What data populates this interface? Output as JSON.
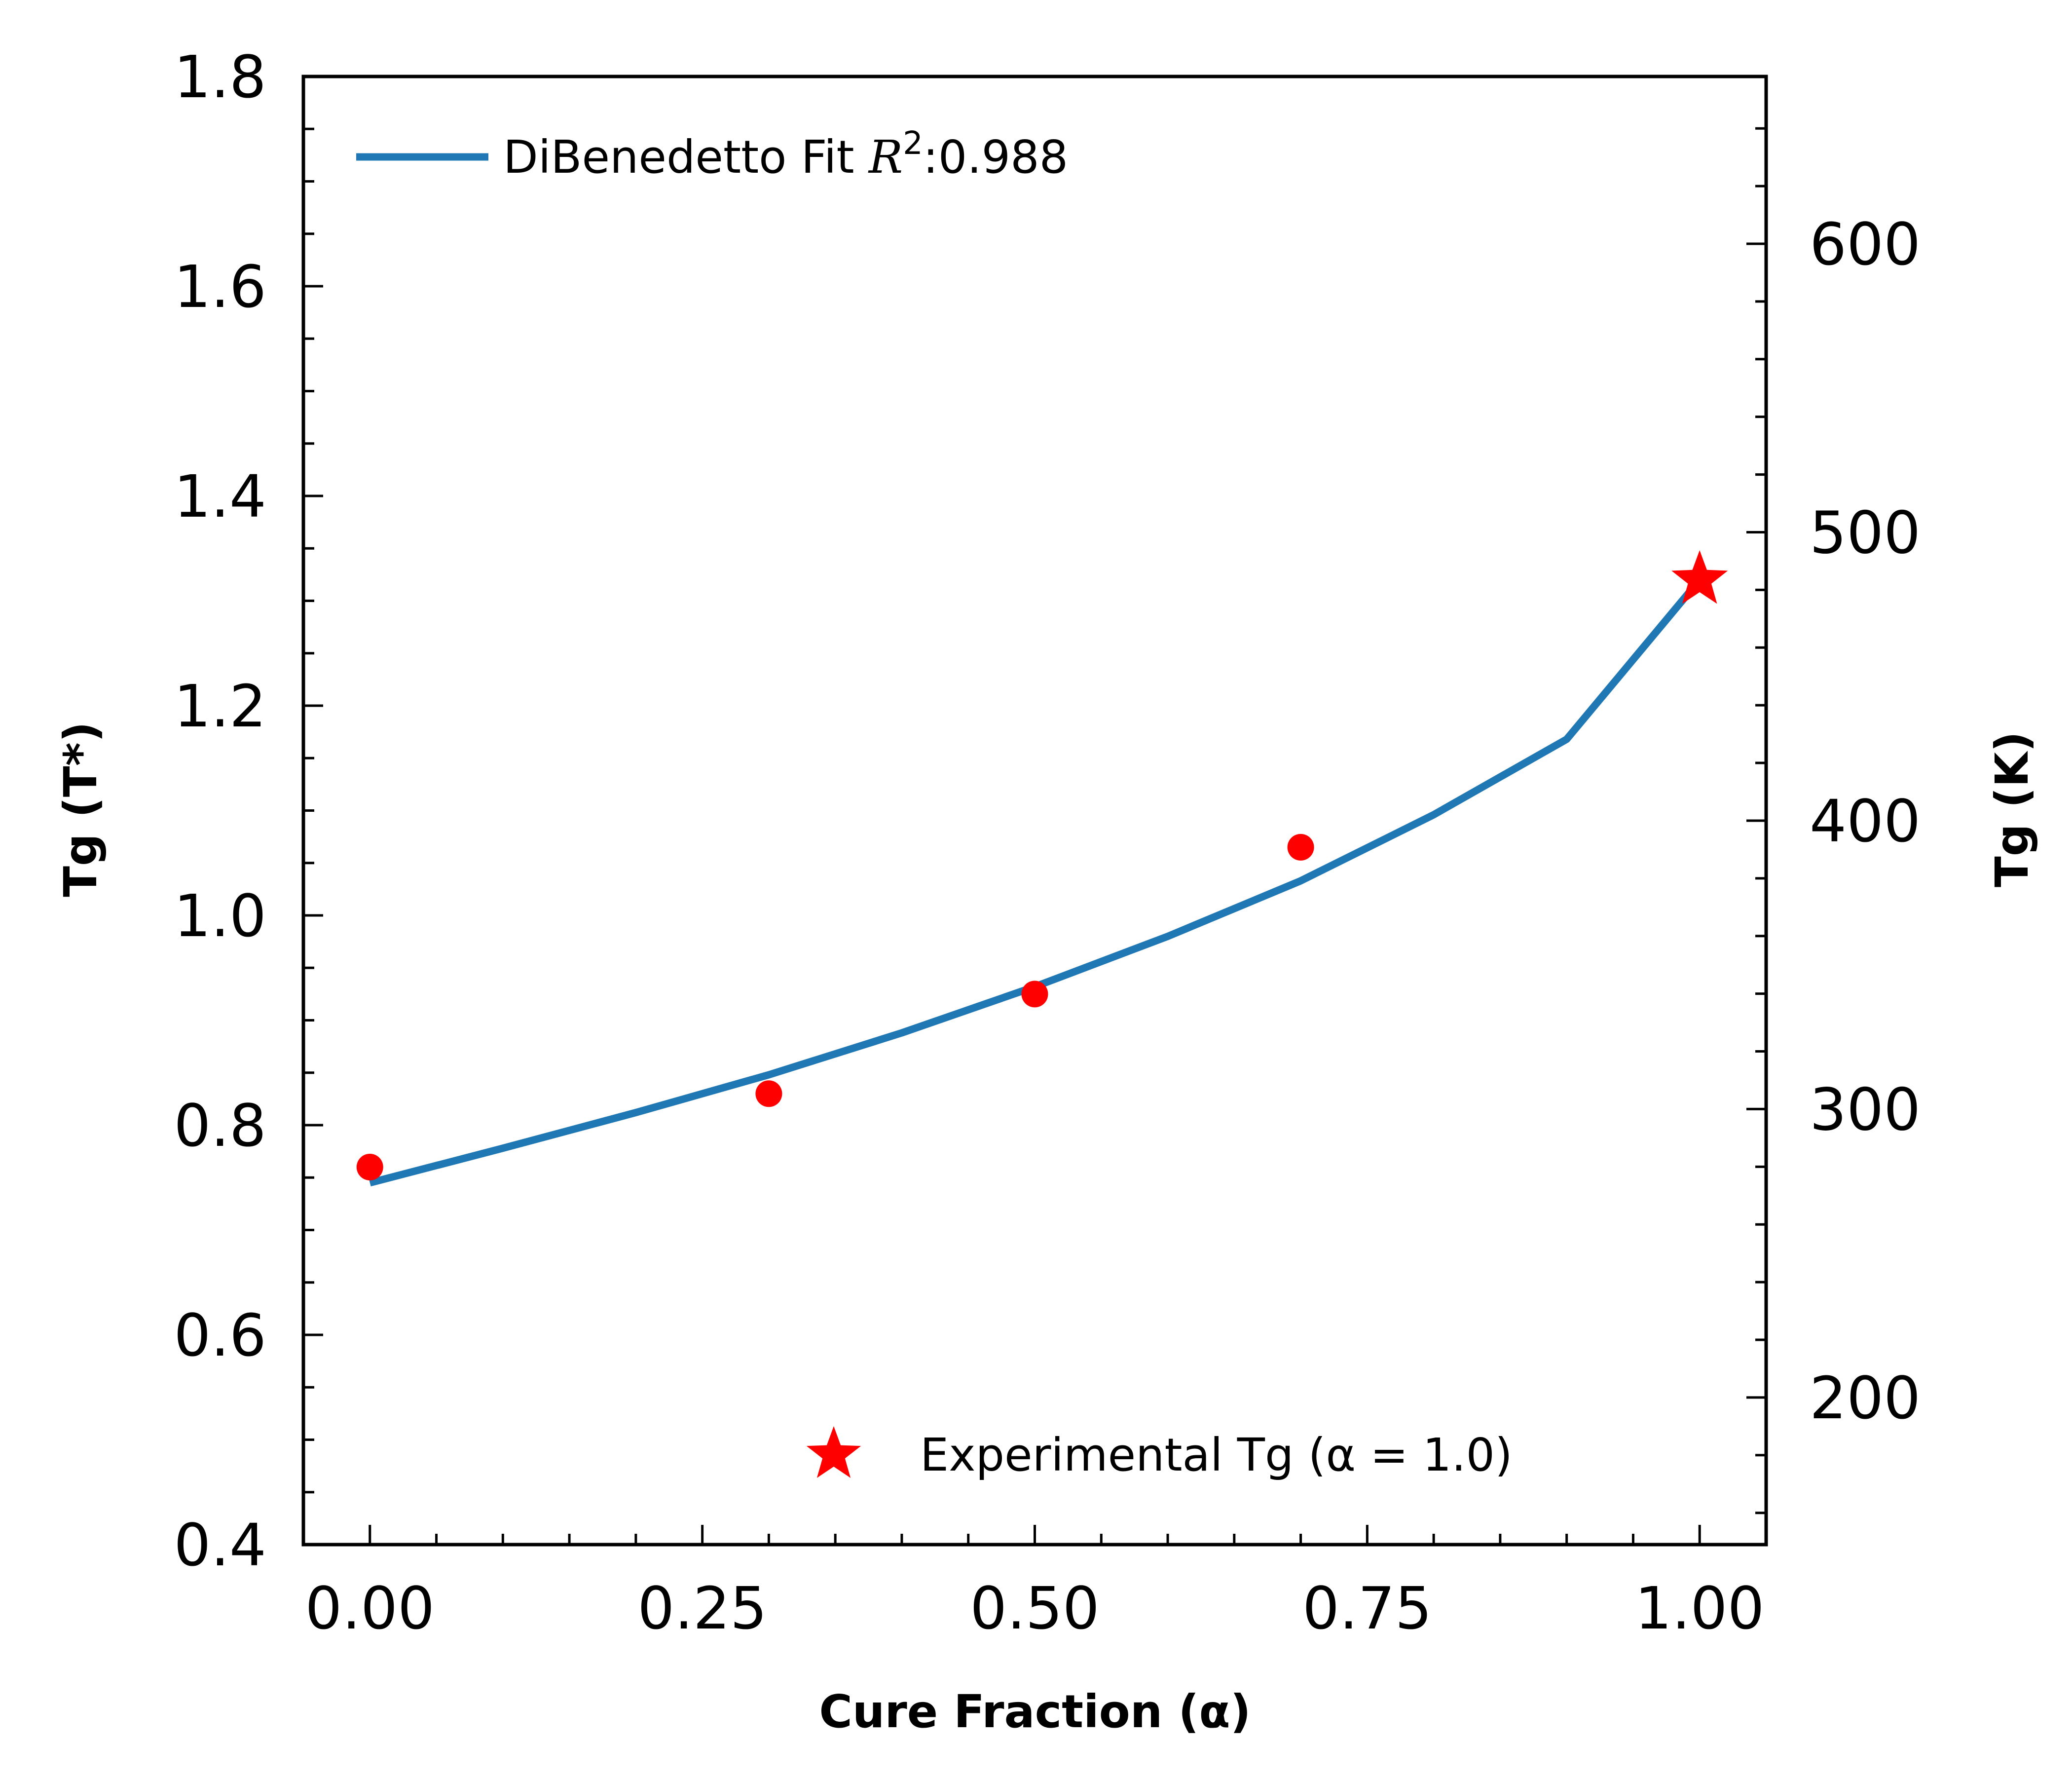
{
  "chart_data": {
    "type": "line",
    "xlabel": "Cure Fraction (α)",
    "ylabel": "Tg (T*)",
    "y2label": "Tg (K)",
    "xlim": [
      -0.05,
      1.05
    ],
    "ylim": [
      0.4,
      1.8
    ],
    "y2lim": [
      149,
      658
    ],
    "x_ticks": [
      "0.00",
      "0.25",
      "0.50",
      "0.75",
      "1.00"
    ],
    "x_tick_values": [
      0,
      0.25,
      0.5,
      0.75,
      1.0
    ],
    "y_ticks": [
      "0.4",
      "0.6",
      "0.8",
      "1.0",
      "1.2",
      "1.4",
      "1.6",
      "1.8"
    ],
    "y_tick_values": [
      0.4,
      0.6,
      0.8,
      1.0,
      1.2,
      1.4,
      1.6,
      1.8
    ],
    "y2_ticks": [
      "200",
      "300",
      "400",
      "500",
      "600"
    ],
    "y2_tick_values": [
      200,
      300,
      400,
      500,
      600
    ],
    "grid": false,
    "series": [
      {
        "name": "DiBenedetto Fit R²:0.988",
        "legend_prefix": "DiBenedetto Fit ",
        "legend_math": "R",
        "legend_sup": "2",
        "legend_suffix": ":0.988",
        "kind": "line",
        "color": "#1f77b4",
        "x": [
          0,
          0.1,
          0.2,
          0.3,
          0.4,
          0.5,
          0.6,
          0.7,
          0.8,
          0.9,
          1.0
        ],
        "y": [
          0.745,
          0.778,
          0.812,
          0.848,
          0.888,
          0.932,
          0.98,
          1.033,
          1.096,
          1.168,
          1.32
        ]
      },
      {
        "kind": "scatter",
        "color": "#ff0000",
        "x": [
          0.0,
          0.3,
          0.5,
          0.7
        ],
        "y": [
          0.76,
          0.83,
          0.925,
          1.065
        ]
      },
      {
        "name": "Experimental Tg (α = 1.0)",
        "legend_label": "Experimental Tg (α = 1.0)",
        "kind": "star",
        "color": "#ff0000",
        "x": [
          1.0
        ],
        "y": [
          1.32
        ]
      }
    ],
    "legend_placement": [
      "upper-left",
      "lower-right"
    ]
  }
}
